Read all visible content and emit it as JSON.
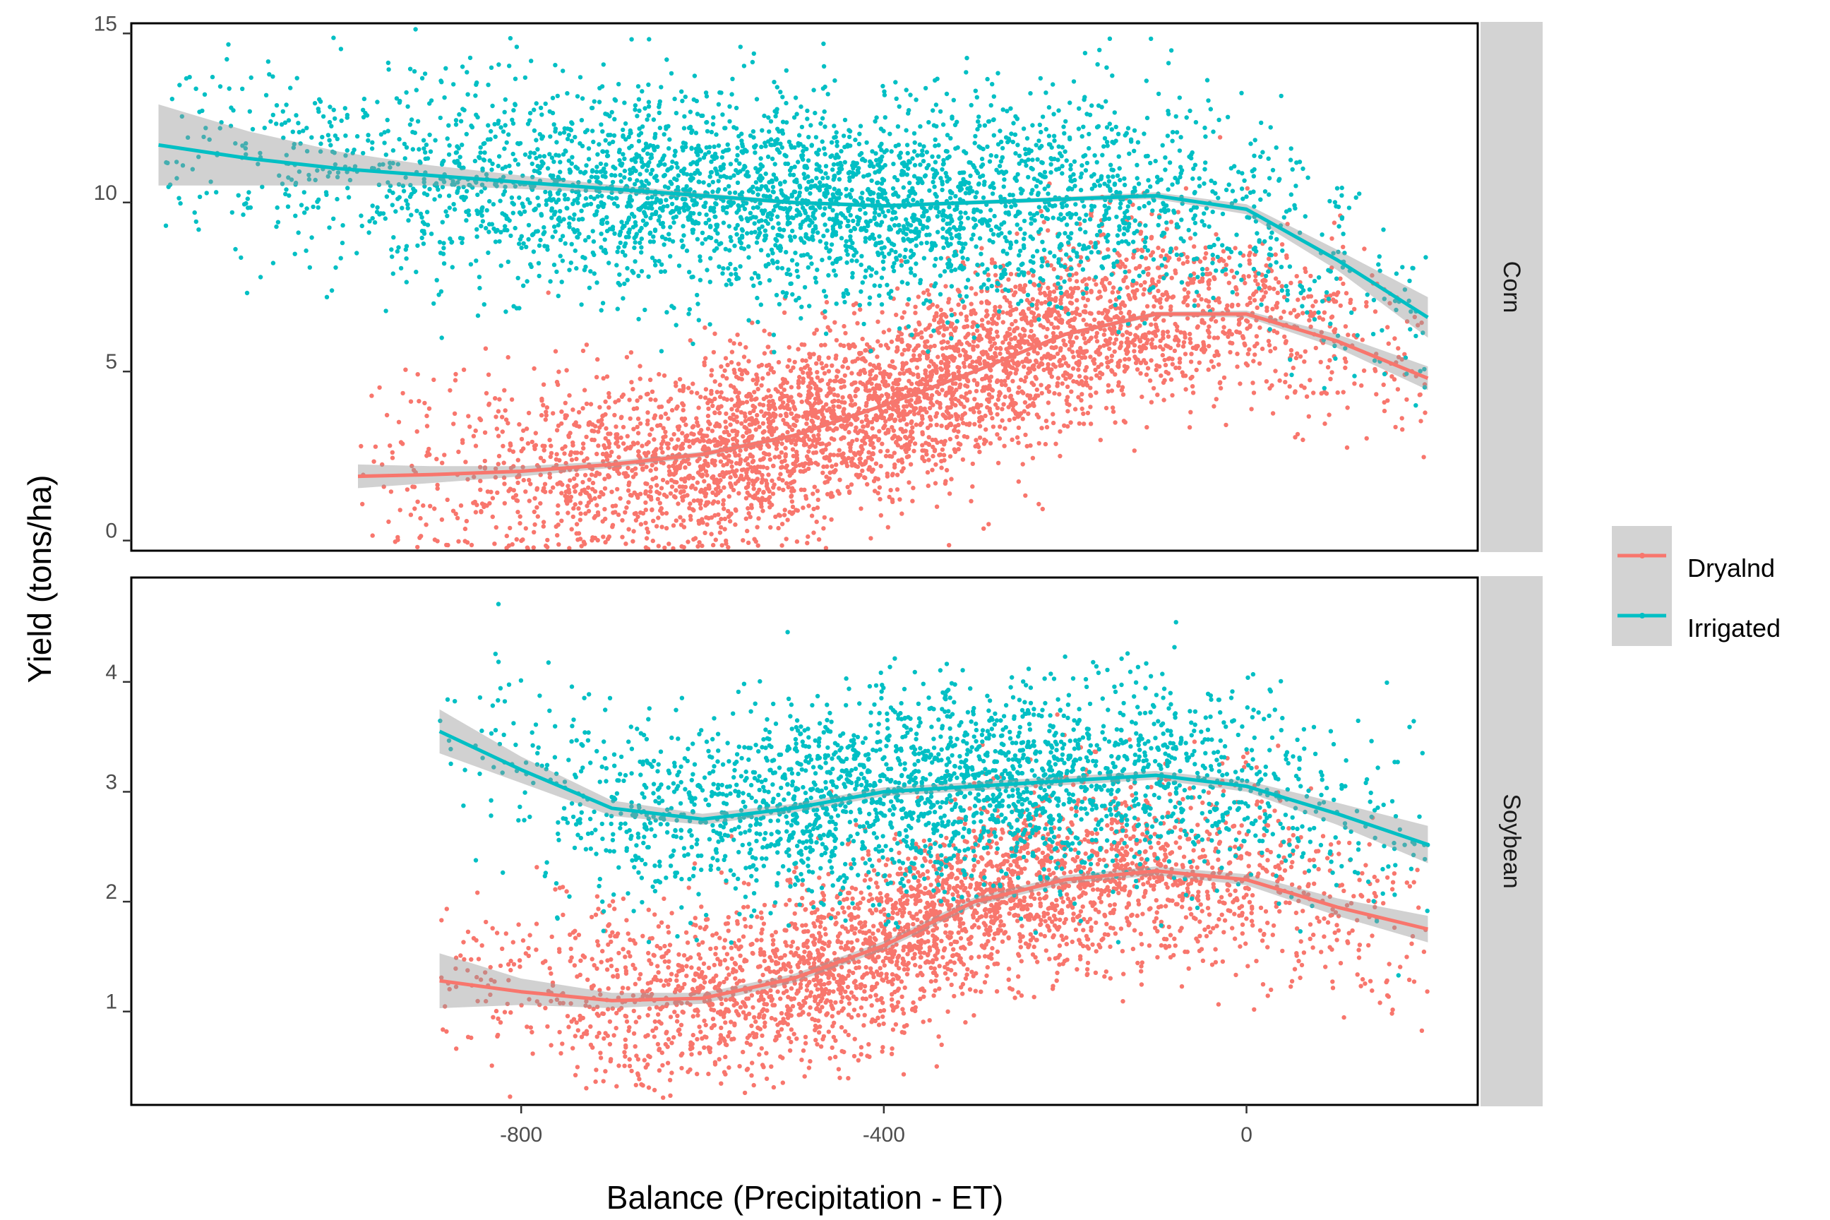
{
  "chart_data": {
    "type": "scatter",
    "xlabel": "Balance (Precipitation - ET)",
    "ylabel": "Yield (tons/ha)",
    "xlim": [
      -1230,
      255
    ],
    "x_ticks": [
      -800,
      -400,
      0
    ],
    "x_tick_labels": [
      "-800",
      "-400",
      "0"
    ],
    "grid": false,
    "legend": {
      "placement": "right",
      "entries": [
        {
          "name": "Dryalnd",
          "color": "#F8766D"
        },
        {
          "name": "Irrigated",
          "color": "#00BFC4"
        }
      ]
    },
    "panels": [
      {
        "strip": "Corn",
        "ylim": [
          -0.3,
          15.3
        ],
        "y_ticks": [
          0,
          5,
          10,
          15
        ],
        "y_tick_labels": [
          "0",
          "5",
          "10",
          "15"
        ],
        "series": [
          {
            "name": "Dryalnd",
            "color": "#F8766D",
            "x_range": [
              -980,
              200
            ],
            "smooth": {
              "x": [
                -980,
                -900,
                -800,
                -700,
                -600,
                -500,
                -400,
                -300,
                -200,
                -100,
                0,
                100,
                200
              ],
              "y": [
                1.9,
                1.95,
                2.05,
                2.25,
                2.55,
                3.1,
                4.0,
                5.0,
                6.1,
                6.7,
                6.7,
                5.9,
                4.8
              ]
            },
            "ribbon_halfwidth": [
              0.35,
              0.25,
              0.15,
              0.1,
              0.08,
              0.06,
              0.06,
              0.06,
              0.06,
              0.07,
              0.1,
              0.2,
              0.35
            ],
            "scatter_points": 4200,
            "spread_sd": 1.4
          },
          {
            "name": "Irrigated",
            "color": "#00BFC4",
            "x_range": [
              -1200,
              200
            ],
            "smooth": {
              "x": [
                -1200,
                -1100,
                -1000,
                -900,
                -800,
                -700,
                -600,
                -500,
                -400,
                -300,
                -200,
                -100,
                0,
                100,
                200
              ],
              "y": [
                11.7,
                11.3,
                11.0,
                10.8,
                10.6,
                10.4,
                10.2,
                10.0,
                9.9,
                10.0,
                10.1,
                10.2,
                9.8,
                8.3,
                6.6
              ]
            },
            "ribbon_halfwidth": [
              1.2,
              0.8,
              0.5,
              0.3,
              0.2,
              0.12,
              0.08,
              0.06,
              0.06,
              0.06,
              0.07,
              0.1,
              0.15,
              0.3,
              0.6
            ],
            "scatter_points": 3600,
            "spread_sd": 1.5
          }
        ]
      },
      {
        "strip": "Soybean",
        "ylim": [
          0.15,
          4.95
        ],
        "y_ticks": [
          1,
          2,
          3,
          4
        ],
        "y_tick_labels": [
          "1",
          "2",
          "3",
          "4"
        ],
        "series": [
          {
            "name": "Dryalnd",
            "color": "#F8766D",
            "x_range": [
              -890,
              200
            ],
            "smooth": {
              "x": [
                -890,
                -800,
                -700,
                -600,
                -500,
                -400,
                -300,
                -200,
                -100,
                0,
                100,
                200
              ],
              "y": [
                1.28,
                1.18,
                1.1,
                1.12,
                1.3,
                1.6,
                2.0,
                2.2,
                2.28,
                2.2,
                1.95,
                1.75
              ]
            },
            "ribbon_halfwidth": [
              0.25,
              0.12,
              0.07,
              0.05,
              0.04,
              0.04,
              0.04,
              0.04,
              0.04,
              0.05,
              0.08,
              0.12
            ],
            "scatter_points": 3300,
            "spread_sd": 0.42
          },
          {
            "name": "Irrigated",
            "color": "#00BFC4",
            "x_range": [
              -890,
              200
            ],
            "smooth": {
              "x": [
                -890,
                -800,
                -700,
                -600,
                -500,
                -400,
                -300,
                -200,
                -100,
                0,
                100,
                200
              ],
              "y": [
                3.55,
                3.2,
                2.85,
                2.75,
                2.85,
                3.0,
                3.05,
                3.1,
                3.15,
                3.05,
                2.8,
                2.52
              ]
            },
            "ribbon_halfwidth": [
              0.2,
              0.12,
              0.07,
              0.05,
              0.04,
              0.04,
              0.04,
              0.04,
              0.04,
              0.05,
              0.1,
              0.17
            ],
            "scatter_points": 2600,
            "spread_sd": 0.45
          }
        ]
      }
    ]
  }
}
